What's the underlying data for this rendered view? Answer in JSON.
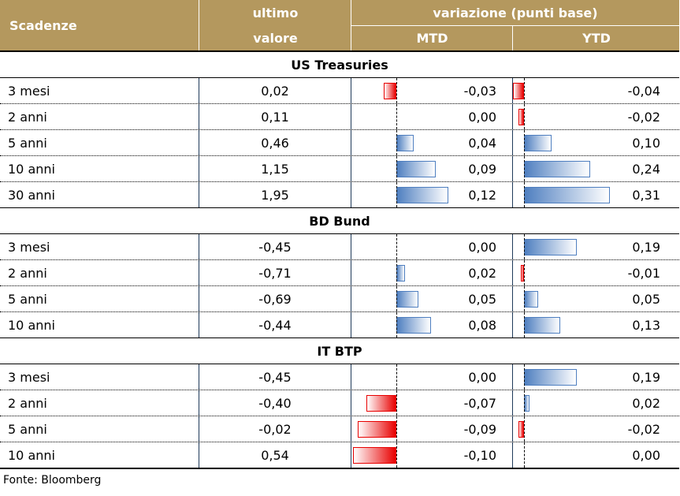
{
  "header": {
    "col_scadenze": "Scadenze",
    "col_ultimo_1": "ultimo",
    "col_ultimo_2": "valore",
    "col_variazione": "variazione (punti base)",
    "col_mtd": "MTD",
    "col_ytd": "YTD"
  },
  "sections": [
    {
      "title": "US Treasuries",
      "rows": [
        {
          "label": "3 mesi",
          "value": "0,02",
          "mtd": "-0,03",
          "ytd": "-0,04"
        },
        {
          "label": "2 anni",
          "value": "0,11",
          "mtd": "0,00",
          "ytd": "-0,02"
        },
        {
          "label": "5 anni",
          "value": "0,46",
          "mtd": "0,04",
          "ytd": "0,10"
        },
        {
          "label": "10 anni",
          "value": "1,15",
          "mtd": "0,09",
          "ytd": "0,24"
        },
        {
          "label": "30 anni",
          "value": "1,95",
          "mtd": "0,12",
          "ytd": "0,31"
        }
      ]
    },
    {
      "title": "BD Bund",
      "rows": [
        {
          "label": "3 mesi",
          "value": "-0,45",
          "mtd": "0,00",
          "ytd": "0,19"
        },
        {
          "label": "2 anni",
          "value": "-0,71",
          "mtd": "0,02",
          "ytd": "-0,01"
        },
        {
          "label": "5 anni",
          "value": "-0,69",
          "mtd": "0,05",
          "ytd": "0,05"
        },
        {
          "label": "10 anni",
          "value": "-0,44",
          "mtd": "0,08",
          "ytd": "0,13"
        }
      ]
    },
    {
      "title": "IT BTP",
      "rows": [
        {
          "label": "3 mesi",
          "value": "-0,45",
          "mtd": "0,00",
          "ytd": "0,19"
        },
        {
          "label": "2 anni",
          "value": "-0,40",
          "mtd": "-0,07",
          "ytd": "0,02"
        },
        {
          "label": "5 anni",
          "value": "-0,02",
          "mtd": "-0,09",
          "ytd": "-0,02"
        },
        {
          "label": "10 anni",
          "value": "0,54",
          "mtd": "-0,10",
          "ytd": "0,00"
        }
      ]
    }
  ],
  "source": "Fonte: Bloomberg",
  "colors": {
    "header": "#B4985E",
    "positive": "#4f7fc0",
    "negative": "#e80000"
  }
}
